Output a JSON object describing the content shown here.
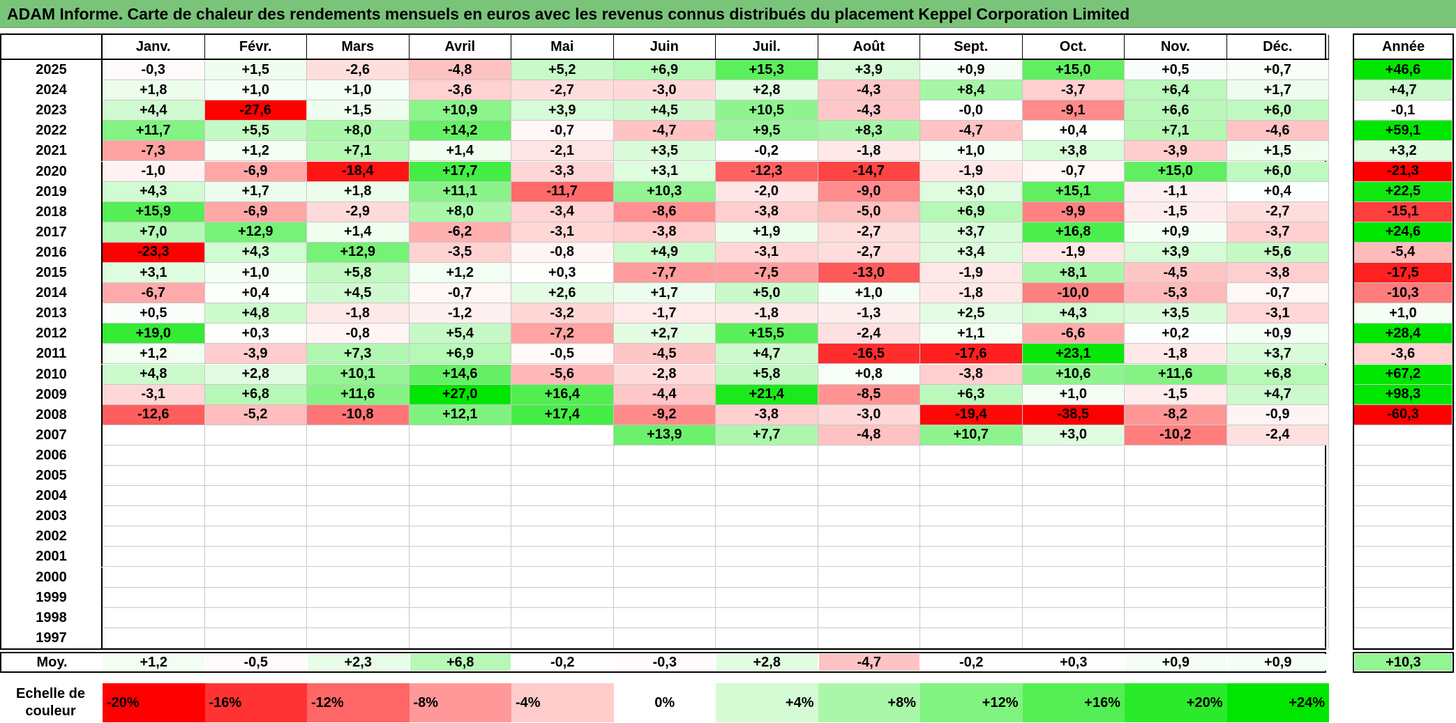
{
  "title": "ADAM Informe. Carte de chaleur des rendements mensuels en euros avec les revenus connus distribués du placement Keppel Corporation Limited",
  "chart_data": {
    "type": "heatmap",
    "title": "ADAM Informe. Carte de chaleur des rendements mensuels en euros avec les revenus connus distribués du placement Keppel Corporation Limited",
    "months": [
      "Janv.",
      "Févr.",
      "Mars",
      "Avril",
      "Mai",
      "Juin",
      "Juil.",
      "Août",
      "Sept.",
      "Oct.",
      "Nov.",
      "Déc."
    ],
    "year_header": "Année",
    "years": [
      2025,
      2024,
      2023,
      2022,
      2021,
      2020,
      2019,
      2018,
      2017,
      2016,
      2015,
      2014,
      2013,
      2012,
      2011,
      2010,
      2009,
      2008,
      2007,
      2006,
      2005,
      2004,
      2003,
      2002,
      2001,
      2000,
      1999,
      1998,
      1997
    ],
    "rows": [
      {
        "year": "2025",
        "monthly": [
          "-0,3",
          "+1,5",
          "-2,6",
          "-4,8",
          "+5,2",
          "+6,9",
          "+15,3",
          "+3,9",
          "+0,9",
          "+15,0",
          "+0,5",
          "+0,7"
        ],
        "annual": "+46,6"
      },
      {
        "year": "2024",
        "monthly": [
          "+1,8",
          "+1,0",
          "+1,0",
          "-3,6",
          "-2,7",
          "-3,0",
          "+2,8",
          "-4,3",
          "+8,4",
          "-3,7",
          "+6,4",
          "+1,7"
        ],
        "annual": "+4,7"
      },
      {
        "year": "2023",
        "monthly": [
          "+4,4",
          "-27,6",
          "+1,5",
          "+10,9",
          "+3,9",
          "+4,5",
          "+10,5",
          "-4,3",
          "-0,0",
          "-9,1",
          "+6,6",
          "+6,0"
        ],
        "annual": "-0,1"
      },
      {
        "year": "2022",
        "monthly": [
          "+11,7",
          "+5,5",
          "+8,0",
          "+14,2",
          "-0,7",
          "-4,7",
          "+9,5",
          "+8,3",
          "-4,7",
          "+0,4",
          "+7,1",
          "-4,6"
        ],
        "annual": "+59,1"
      },
      {
        "year": "2021",
        "monthly": [
          "-7,3",
          "+1,2",
          "+7,1",
          "+1,4",
          "-2,1",
          "+3,5",
          "-0,2",
          "-1,8",
          "+1,0",
          "+3,8",
          "-3,9",
          "+1,5"
        ],
        "annual": "+3,2"
      },
      {
        "year": "2020",
        "monthly": [
          "-1,0",
          "-6,9",
          "-18,4",
          "+17,7",
          "-3,3",
          "+3,1",
          "-12,3",
          "-14,7",
          "-1,9",
          "-0,7",
          "+15,0",
          "+6,0"
        ],
        "annual": "-21,3"
      },
      {
        "year": "2019",
        "monthly": [
          "+4,3",
          "+1,7",
          "+1,8",
          "+11,1",
          "-11,7",
          "+10,3",
          "-2,0",
          "-9,0",
          "+3,0",
          "+15,1",
          "-1,1",
          "+0,4"
        ],
        "annual": "+22,5"
      },
      {
        "year": "2018",
        "monthly": [
          "+15,9",
          "-6,9",
          "-2,9",
          "+8,0",
          "-3,4",
          "-8,6",
          "-3,8",
          "-5,0",
          "+6,9",
          "-9,9",
          "-1,5",
          "-2,7"
        ],
        "annual": "-15,1"
      },
      {
        "year": "2017",
        "monthly": [
          "+7,0",
          "+12,9",
          "+1,4",
          "-6,2",
          "-3,1",
          "-3,8",
          "+1,9",
          "-2,7",
          "+3,7",
          "+16,8",
          "+0,9",
          "-3,7"
        ],
        "annual": "+24,6"
      },
      {
        "year": "2016",
        "monthly": [
          "-23,3",
          "+4,3",
          "+12,9",
          "-3,5",
          "-0,8",
          "+4,9",
          "-3,1",
          "-2,7",
          "+3,4",
          "-1,9",
          "+3,9",
          "+5,6"
        ],
        "annual": "-5,4"
      },
      {
        "year": "2015",
        "monthly": [
          "+3,1",
          "+1,0",
          "+5,8",
          "+1,2",
          "+0,3",
          "-7,7",
          "-7,5",
          "-13,0",
          "-1,9",
          "+8,1",
          "-4,5",
          "-3,8"
        ],
        "annual": "-17,5"
      },
      {
        "year": "2014",
        "monthly": [
          "-6,7",
          "+0,4",
          "+4,5",
          "-0,7",
          "+2,6",
          "+1,7",
          "+5,0",
          "+1,0",
          "-1,8",
          "-10,0",
          "-5,3",
          "-0,7"
        ],
        "annual": "-10,3"
      },
      {
        "year": "2013",
        "monthly": [
          "+0,5",
          "+4,8",
          "-1,8",
          "-1,2",
          "-3,2",
          "-1,7",
          "-1,8",
          "-1,3",
          "+2,5",
          "+4,3",
          "+3,5",
          "-3,1"
        ],
        "annual": "+1,0"
      },
      {
        "year": "2012",
        "monthly": [
          "+19,0",
          "+0,3",
          "-0,8",
          "+5,4",
          "-7,2",
          "+2,7",
          "+15,5",
          "-2,4",
          "+1,1",
          "-6,6",
          "+0,2",
          "+0,9"
        ],
        "annual": "+28,4"
      },
      {
        "year": "2011",
        "monthly": [
          "+1,2",
          "-3,9",
          "+7,3",
          "+6,9",
          "-0,5",
          "-4,5",
          "+4,7",
          "-16,5",
          "-17,6",
          "+23,1",
          "-1,8",
          "+3,7"
        ],
        "annual": "-3,6"
      },
      {
        "year": "2010",
        "monthly": [
          "+4,8",
          "+2,8",
          "+10,1",
          "+14,6",
          "-5,6",
          "-2,8",
          "+5,8",
          "+0,8",
          "-3,8",
          "+10,6",
          "+11,6",
          "+6,8"
        ],
        "annual": "+67,2"
      },
      {
        "year": "2009",
        "monthly": [
          "-3,1",
          "+6,8",
          "+11,6",
          "+27,0",
          "+16,4",
          "-4,4",
          "+21,4",
          "-8,5",
          "+6,3",
          "+1,0",
          "-1,5",
          "+4,7"
        ],
        "annual": "+98,3"
      },
      {
        "year": "2008",
        "monthly": [
          "-12,6",
          "-5,2",
          "-10,8",
          "+12,1",
          "+17,4",
          "-9,2",
          "-3,8",
          "-3,0",
          "-19,4",
          "-38,5",
          "-8,2",
          "-0,9"
        ],
        "annual": "-60,3"
      },
      {
        "year": "2007",
        "monthly": [
          "",
          "",
          "",
          "",
          "",
          "+13,9",
          "+7,7",
          "-4,8",
          "+10,7",
          "+3,0",
          "-10,2",
          "-2,4"
        ],
        "annual": ""
      },
      {
        "year": "2006",
        "monthly": [
          "",
          "",
          "",
          "",
          "",
          "",
          "",
          "",
          "",
          "",
          "",
          ""
        ],
        "annual": ""
      },
      {
        "year": "2005",
        "monthly": [
          "",
          "",
          "",
          "",
          "",
          "",
          "",
          "",
          "",
          "",
          "",
          ""
        ],
        "annual": ""
      },
      {
        "year": "2004",
        "monthly": [
          "",
          "",
          "",
          "",
          "",
          "",
          "",
          "",
          "",
          "",
          "",
          ""
        ],
        "annual": ""
      },
      {
        "year": "2003",
        "monthly": [
          "",
          "",
          "",
          "",
          "",
          "",
          "",
          "",
          "",
          "",
          "",
          ""
        ],
        "annual": ""
      },
      {
        "year": "2002",
        "monthly": [
          "",
          "",
          "",
          "",
          "",
          "",
          "",
          "",
          "",
          "",
          "",
          ""
        ],
        "annual": ""
      },
      {
        "year": "2001",
        "monthly": [
          "",
          "",
          "",
          "",
          "",
          "",
          "",
          "",
          "",
          "",
          "",
          ""
        ],
        "annual": ""
      },
      {
        "year": "2000",
        "monthly": [
          "",
          "",
          "",
          "",
          "",
          "",
          "",
          "",
          "",
          "",
          "",
          ""
        ],
        "annual": ""
      },
      {
        "year": "1999",
        "monthly": [
          "",
          "",
          "",
          "",
          "",
          "",
          "",
          "",
          "",
          "",
          "",
          ""
        ],
        "annual": ""
      },
      {
        "year": "1998",
        "monthly": [
          "",
          "",
          "",
          "",
          "",
          "",
          "",
          "",
          "",
          "",
          "",
          ""
        ],
        "annual": ""
      },
      {
        "year": "1997",
        "monthly": [
          "",
          "",
          "",
          "",
          "",
          "",
          "",
          "",
          "",
          "",
          "",
          ""
        ],
        "annual": ""
      }
    ],
    "average": {
      "label": "Moy.",
      "monthly": [
        "+1,2",
        "-0,5",
        "+2,3",
        "+6,8",
        "-0,2",
        "-0,3",
        "+2,8",
        "-4,7",
        "-0,2",
        "+0,3",
        "+0,9",
        "+0,9"
      ],
      "annual": "+10,3"
    },
    "color_scale": {
      "label": "Echelle de couleur",
      "ticks": [
        "-20%",
        "-16%",
        "-12%",
        "-8%",
        "-4%",
        "0%",
        "+4%",
        "+8%",
        "+12%",
        "+16%",
        "+20%",
        "+24%"
      ],
      "values": [
        -20,
        -16,
        -12,
        -8,
        -4,
        0,
        4,
        8,
        12,
        16,
        20,
        24
      ],
      "negative_color": "#ff0000",
      "neutral_color": "#ffffff",
      "positive_color": "#00e600"
    }
  },
  "colors": {
    "title_background": "#7ac47a",
    "border": "#000000",
    "grid": "#c8c8c8"
  }
}
